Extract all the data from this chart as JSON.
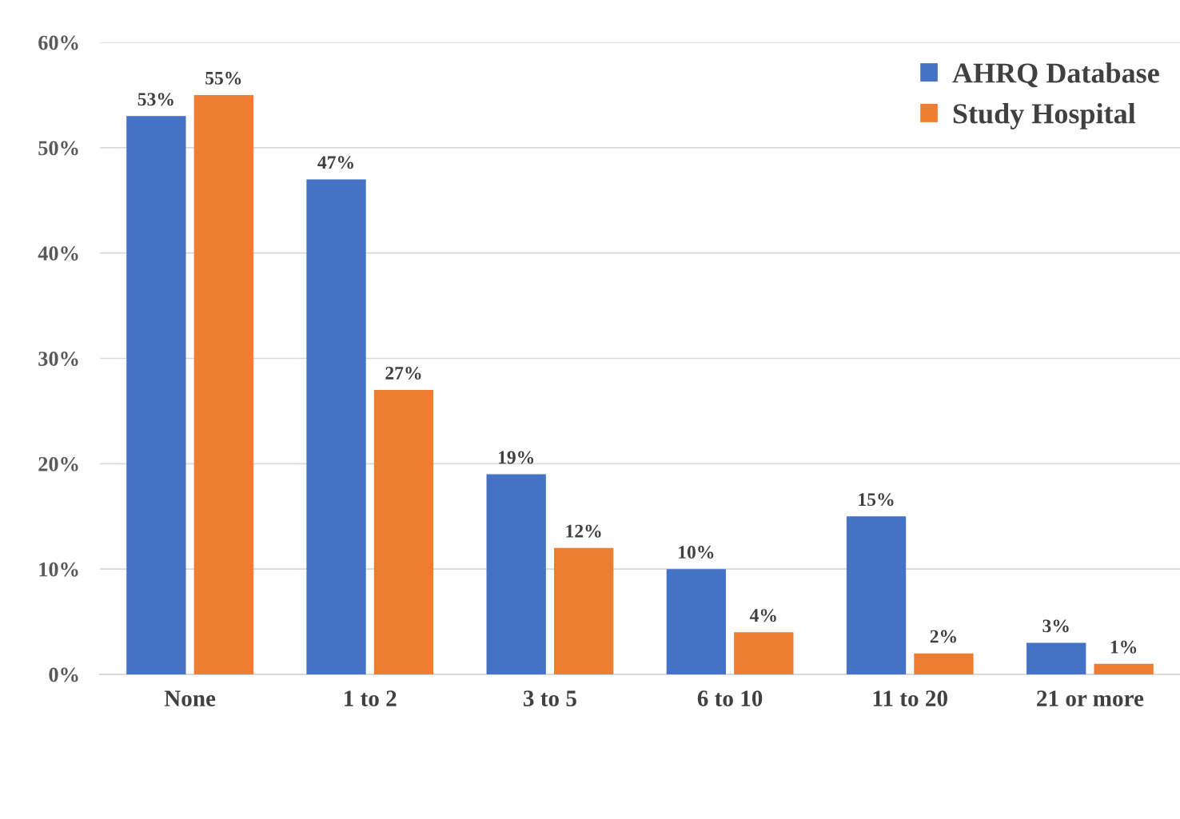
{
  "chart_data": {
    "type": "bar",
    "categories": [
      "None",
      "1 to 2",
      "3 to 5",
      "6 to 10",
      "11 to 20",
      "21 or more"
    ],
    "series": [
      {
        "name": "AHRQ Database",
        "color": "#4472c4",
        "values": [
          53,
          47,
          19,
          10,
          15,
          3
        ],
        "value_labels": [
          "53%",
          "47%",
          "19%",
          "10%",
          "15%",
          "3%"
        ]
      },
      {
        "name": "Study Hospital",
        "color": "#ed7d31",
        "values": [
          55,
          27,
          12,
          4,
          2,
          1
        ],
        "value_labels": [
          "55%",
          "27%",
          "12%",
          "4%",
          "2%",
          "1%"
        ]
      }
    ],
    "ylim": [
      0,
      60
    ],
    "yticks": [
      {
        "value": 0,
        "label": "0%"
      },
      {
        "value": 10,
        "label": "10%"
      },
      {
        "value": 20,
        "label": "20%"
      },
      {
        "value": 30,
        "label": "30%"
      },
      {
        "value": 40,
        "label": "40%"
      },
      {
        "value": 50,
        "label": "50%"
      },
      {
        "value": 60,
        "label": "60%"
      }
    ],
    "grid": "y",
    "legend": "top right"
  }
}
